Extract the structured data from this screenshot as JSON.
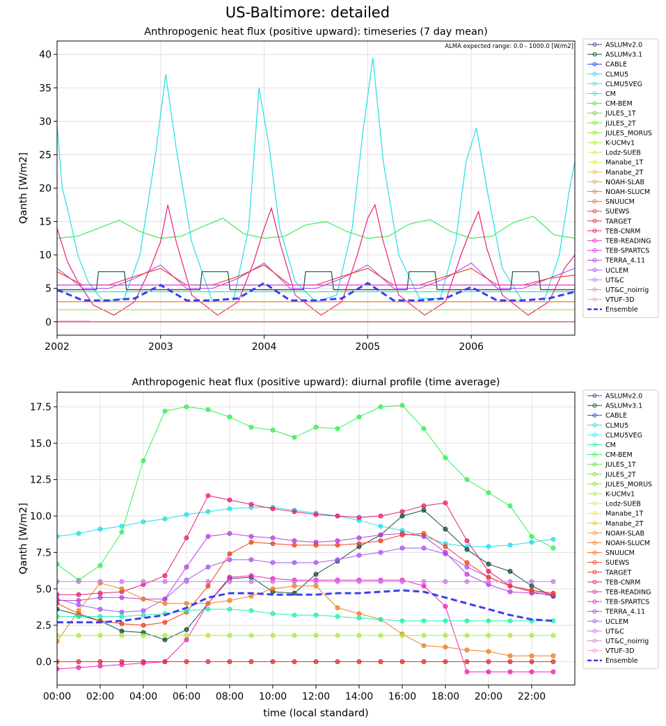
{
  "suptitle": "US-Baltimore: detailed",
  "colors": {
    "ASLUMv2.0": "#3b4a8f",
    "ASLUMv3.1": "#14503a",
    "CABLE": "#2a3cff",
    "CLMU5": "#22dde8",
    "CLMU5VEG": "#33e6f0",
    "CM": "#22eeb0",
    "CM-BEM": "#33ee55",
    "JULES_1T": "#66dd33",
    "JULES_2T": "#7ddd33",
    "JULES_MORUS": "#88e622",
    "K-UCMv1": "#aaee33",
    "Lodz-SUEB": "#c8f055",
    "Manabe_1T": "#ddee33",
    "Manabe_2T": "#f0c020",
    "NOAH-SLAB": "#f0a030",
    "NOAH-SLUCM": "#f07f20",
    "SNUUCM": "#ff6a1a",
    "SUEWS": "#f04020",
    "TARGET": "#e03030",
    "TEB-CNRM": "#e81e78",
    "TEB-READING": "#ee22bb",
    "TEB-SPARTCS": "#dd33dd",
    "TERRA_4.11": "#b540e0",
    "UCLEM": "#a855f7",
    "UT&C": "#cc77ee",
    "UT&C_noirrig": "#dd88dd",
    "VTUF-3D": "#ee99cc",
    "Ensemble": "#3c3cf0"
  },
  "chart_data": [
    {
      "type": "line",
      "title": "Anthropogenic heat flux (positive upward): timeseries (7 day mean)",
      "ylabel": "Qanth [W/m2]",
      "xlabel": "",
      "annotation": "ALMA expected range: 0.0 - 1000.0 [W/m2]",
      "xlim": [
        2002.0,
        2007.0
      ],
      "ylim": [
        -2,
        42
      ],
      "xticks": [
        "2002",
        "2003",
        "2004",
        "2005",
        "2006"
      ],
      "xtick_values": [
        2002,
        2003,
        2004,
        2005,
        2006
      ],
      "yticks": [
        0,
        5,
        10,
        15,
        20,
        25,
        30,
        35,
        40
      ],
      "grid": true,
      "legend": "outside-right",
      "series_names": [
        "ASLUMv2.0",
        "ASLUMv3.1",
        "CABLE",
        "CLMU5",
        "CLMU5VEG",
        "CM",
        "CM-BEM",
        "JULES_1T",
        "JULES_2T",
        "JULES_MORUS",
        "K-UCMv1",
        "Lodz-SUEB",
        "Manabe_1T",
        "Manabe_2T",
        "NOAH-SLAB",
        "NOAH-SLUCM",
        "SNUUCM",
        "SUEWS",
        "TARGET",
        "TEB-CNRM",
        "TEB-READING",
        "TEB-SPARTCS",
        "TERRA_4.11",
        "UCLEM",
        "UT&C",
        "UT&C_noirrig",
        "VTUF-3D",
        "Ensemble"
      ],
      "series": [
        {
          "name": "CM-BEM",
          "x": [
            2002.0,
            2002.2,
            2002.4,
            2002.6,
            2002.8,
            2003.0,
            2003.2,
            2003.4,
            2003.6,
            2003.8,
            2004.0,
            2004.2,
            2004.4,
            2004.6,
            2004.8,
            2005.0,
            2005.2,
            2005.4,
            2005.6,
            2005.8,
            2006.0,
            2006.2,
            2006.4,
            2006.6,
            2006.8,
            2007.0
          ],
          "y": [
            12.5,
            12.8,
            14.0,
            15.2,
            13.5,
            12.5,
            12.8,
            14.2,
            15.5,
            13.2,
            12.5,
            12.8,
            14.5,
            15.0,
            13.5,
            12.5,
            12.8,
            14.6,
            15.3,
            13.5,
            12.5,
            12.8,
            14.8,
            15.8,
            13.0,
            12.5
          ]
        },
        {
          "name": "CLMU5",
          "x": [
            2002.0,
            2002.05,
            2002.1,
            2002.2,
            2002.3,
            2002.45,
            2002.65,
            2002.8,
            2002.95,
            2003.05,
            2003.15,
            2003.3,
            2003.5,
            2003.7,
            2003.85,
            2003.95,
            2004.05,
            2004.15,
            2004.3,
            2004.5,
            2004.7,
            2004.85,
            2004.95,
            2005.05,
            2005.15,
            2005.3,
            2005.5,
            2005.7,
            2005.85,
            2005.95,
            2006.05,
            2006.15,
            2006.3,
            2006.5,
            2006.7,
            2006.85,
            2006.95,
            2007.0
          ],
          "y": [
            29.5,
            20.0,
            17.0,
            10.0,
            6.0,
            3.0,
            3.5,
            10.0,
            25.0,
            37.0,
            26.0,
            12.0,
            3.0,
            3.0,
            14.0,
            35.0,
            26.0,
            14.0,
            6.0,
            3.0,
            4.0,
            14.0,
            28.0,
            39.5,
            24.0,
            10.0,
            3.5,
            3.5,
            12.0,
            24.0,
            29.0,
            20.0,
            8.0,
            3.0,
            3.0,
            10.0,
            20.0,
            24.0
          ]
        },
        {
          "name": "TEB-CNRM",
          "x": [
            2002.0,
            2002.1,
            2002.2,
            2002.35,
            2002.55,
            2002.75,
            2002.9,
            2003.0,
            2003.07,
            2003.15,
            2003.3,
            2003.55,
            2003.75,
            2003.9,
            2004.0,
            2004.07,
            2004.15,
            2004.3,
            2004.55,
            2004.75,
            2004.9,
            2005.0,
            2005.07,
            2005.15,
            2005.3,
            2005.55,
            2005.75,
            2005.9,
            2006.0,
            2006.07,
            2006.15,
            2006.3,
            2006.55,
            2006.75,
            2006.9,
            2007.0
          ],
          "y": [
            14.0,
            9.0,
            6.0,
            2.5,
            1.0,
            3.0,
            8.0,
            12.0,
            17.5,
            12.0,
            4.0,
            1.0,
            3.0,
            9.0,
            14.0,
            17.0,
            12.0,
            4.0,
            1.0,
            3.0,
            10.0,
            15.5,
            17.5,
            12.0,
            4.0,
            1.0,
            3.0,
            10.0,
            14.0,
            16.5,
            11.0,
            4.0,
            1.0,
            3.0,
            8.0,
            10.0
          ]
        },
        {
          "name": "UCLEM",
          "x": [
            2002.0,
            2002.25,
            2002.5,
            2002.75,
            2003.0,
            2003.25,
            2003.5,
            2003.75,
            2004.0,
            2004.25,
            2004.5,
            2004.75,
            2005.0,
            2005.25,
            2005.5,
            2005.75,
            2006.0,
            2006.25,
            2006.5,
            2006.75,
            2007.0
          ],
          "y": [
            8.0,
            5.0,
            5.0,
            6.5,
            8.5,
            5.0,
            5.0,
            6.5,
            8.8,
            5.0,
            5.0,
            6.5,
            8.5,
            5.0,
            5.0,
            6.5,
            8.8,
            5.0,
            5.0,
            6.5,
            8.0
          ]
        },
        {
          "name": "SUEWS",
          "x": [
            2002.0,
            2002.25,
            2002.5,
            2002.75,
            2003.0,
            2003.25,
            2003.5,
            2003.75,
            2004.0,
            2004.25,
            2004.5,
            2004.75,
            2005.0,
            2005.25,
            2005.5,
            2005.75,
            2006.0,
            2006.25,
            2006.5,
            2006.75,
            2007.0
          ],
          "y": [
            7.5,
            5.5,
            5.5,
            6.8,
            8.0,
            5.5,
            5.5,
            6.8,
            8.5,
            5.5,
            5.5,
            6.8,
            8.0,
            5.5,
            5.5,
            6.8,
            8.0,
            5.5,
            5.5,
            6.5,
            7.0
          ]
        },
        {
          "name": "ASLUMv3.1",
          "x": [
            2002.0,
            2002.38,
            2002.4,
            2002.65,
            2002.67,
            2003.38,
            2003.4,
            2003.65,
            2003.67,
            2004.38,
            2004.4,
            2004.65,
            2004.67,
            2005.38,
            2005.4,
            2005.65,
            2005.67,
            2006.38,
            2006.4,
            2006.65,
            2006.67,
            2007.0
          ],
          "y": [
            4.8,
            4.8,
            7.5,
            7.5,
            4.8,
            4.8,
            7.5,
            7.5,
            4.8,
            4.8,
            7.5,
            7.5,
            4.8,
            4.8,
            7.5,
            7.5,
            4.8,
            4.8,
            7.5,
            7.5,
            4.8,
            4.8
          ]
        },
        {
          "name": "TEB-SPARTCS",
          "x": [
            2002.0,
            2007.0
          ],
          "y": [
            5.5,
            5.5
          ]
        },
        {
          "name": "CM",
          "x": [
            2002.0,
            2007.0
          ],
          "y": [
            4.5,
            4.5
          ]
        },
        {
          "name": "NOAH-SLUCM",
          "x": [
            2002.0,
            2007.0
          ],
          "y": [
            3.0,
            3.0
          ]
        },
        {
          "name": "K-UCMv1",
          "x": [
            2002.0,
            2007.0
          ],
          "y": [
            1.8,
            1.8
          ]
        },
        {
          "name": "TARGET",
          "x": [
            2002.0,
            2007.0
          ],
          "y": [
            0.0,
            0.0
          ]
        },
        {
          "name": "VTUF-3D",
          "x": [
            2002.0,
            2002.32
          ],
          "y": [
            0.1,
            0.1
          ]
        },
        {
          "name": "Ensemble",
          "x": [
            2002.0,
            2002.25,
            2002.5,
            2002.75,
            2003.0,
            2003.25,
            2003.5,
            2003.75,
            2004.0,
            2004.25,
            2004.5,
            2004.75,
            2005.0,
            2005.25,
            2005.5,
            2005.75,
            2006.0,
            2006.25,
            2006.5,
            2006.75,
            2007.0
          ],
          "y": [
            4.8,
            3.2,
            3.2,
            3.5,
            5.5,
            3.2,
            3.2,
            3.5,
            5.8,
            3.2,
            3.2,
            3.5,
            5.8,
            3.2,
            3.2,
            3.5,
            5.2,
            3.2,
            3.2,
            3.5,
            4.5
          ]
        }
      ]
    },
    {
      "type": "line",
      "title": "Anthropogenic heat flux (positive upward): diurnal profile (time average)",
      "ylabel": "Qanth [W/m2]",
      "xlabel": "time (local standard)",
      "xlim": [
        0,
        24
      ],
      "ylim": [
        -1.6,
        18.5
      ],
      "xticks": [
        "00:00",
        "02:00",
        "04:00",
        "06:00",
        "08:00",
        "10:00",
        "12:00",
        "14:00",
        "16:00",
        "18:00",
        "20:00",
        "22:00"
      ],
      "xtick_values": [
        0,
        2,
        4,
        6,
        8,
        10,
        12,
        14,
        16,
        18,
        20,
        22
      ],
      "yticks": [
        "0.0",
        "2.5",
        "5.0",
        "7.5",
        "10.0",
        "12.5",
        "15.0",
        "17.5"
      ],
      "ytick_values": [
        0,
        2.5,
        5,
        7.5,
        10,
        12.5,
        15,
        17.5
      ],
      "grid": true,
      "legend": "outside-right",
      "series_names": [
        "ASLUMv2.0",
        "ASLUMv3.1",
        "CABLE",
        "CLMU5",
        "CLMU5VEG",
        "CM",
        "CM-BEM",
        "JULES_1T",
        "JULES_2T",
        "JULES_MORUS",
        "K-UCMv1",
        "Lodz-SUEB",
        "Manabe_1T",
        "Manabe_2T",
        "NOAH-SLAB",
        "NOAH-SLUCM",
        "SNUUCM",
        "SUEWS",
        "TARGET",
        "TEB-CNRM",
        "TEB-READING",
        "TEB-SPARTCS",
        "TERRA_4.11",
        "UCLEM",
        "UT&C",
        "UT&C_noirrig",
        "VTUF-3D",
        "Ensemble"
      ],
      "x": [
        0,
        1,
        2,
        3,
        4,
        5,
        6,
        7,
        8,
        9,
        10,
        11,
        12,
        13,
        14,
        15,
        16,
        17,
        18,
        19,
        20,
        21,
        22,
        23
      ],
      "series": [
        {
          "name": "CM-BEM",
          "y": [
            6.7,
            5.6,
            6.6,
            8.9,
            13.8,
            17.2,
            17.5,
            17.3,
            16.8,
            16.1,
            15.9,
            15.4,
            16.1,
            16.0,
            16.8,
            17.5,
            17.6,
            16.0,
            14.0,
            12.5,
            11.6,
            10.7,
            8.6,
            7.8
          ]
        },
        {
          "name": "CLMU5",
          "y": [
            8.6,
            8.8,
            9.1,
            9.3,
            9.6,
            9.8,
            10.1,
            10.3,
            10.5,
            10.6,
            10.6,
            10.4,
            10.2,
            10.0,
            9.7,
            9.3,
            9.0,
            8.6,
            8.1,
            7.9,
            7.9,
            8.0,
            8.2,
            8.4
          ]
        },
        {
          "name": "TEB-CNRM",
          "y": [
            4.6,
            4.6,
            4.7,
            4.8,
            5.3,
            5.9,
            8.5,
            11.4,
            11.1,
            10.8,
            10.5,
            10.3,
            10.1,
            10.0,
            9.9,
            10.0,
            10.3,
            10.7,
            10.9,
            8.3,
            6.2,
            5.2,
            4.8,
            4.5
          ]
        },
        {
          "name": "ASLUMv3.1",
          "y": [
            3.6,
            3.2,
            2.8,
            2.1,
            2.0,
            1.5,
            2.2,
            4.0,
            5.7,
            5.8,
            4.8,
            4.7,
            6.0,
            6.9,
            7.9,
            8.7,
            10.0,
            10.4,
            9.1,
            7.7,
            6.7,
            6.2,
            5.2,
            4.5
          ]
        },
        {
          "name": "UCLEM",
          "y": [
            4.3,
            3.9,
            3.6,
            3.4,
            3.5,
            4.3,
            5.6,
            6.5,
            7.0,
            7.0,
            6.8,
            6.8,
            6.8,
            7.0,
            7.3,
            7.5,
            7.8,
            7.8,
            7.4,
            6.5,
            5.8,
            5.2,
            4.9,
            4.6
          ]
        },
        {
          "name": "TERRA_4.11",
          "y": [
            4.2,
            4.2,
            4.4,
            4.4,
            4.3,
            4.3,
            6.5,
            8.6,
            8.8,
            8.6,
            8.5,
            8.3,
            8.2,
            8.3,
            8.5,
            8.7,
            8.8,
            8.6,
            7.5,
            6.0,
            5.3,
            4.8,
            4.7,
            4.6
          ]
        },
        {
          "name": "SUEWS",
          "y": [
            4.0,
            3.3,
            2.8,
            2.6,
            2.5,
            2.7,
            3.4,
            5.2,
            7.4,
            8.2,
            8.1,
            8.0,
            8.0,
            8.0,
            8.1,
            8.3,
            8.7,
            8.8,
            7.9,
            6.8,
            5.8,
            5.2,
            4.9,
            4.7
          ]
        },
        {
          "name": "TEB-READING",
          "y": [
            -0.5,
            -0.4,
            -0.3,
            -0.2,
            -0.1,
            0.0,
            1.5,
            4.0,
            5.8,
            5.9,
            5.7,
            5.6,
            5.6,
            5.6,
            5.6,
            5.6,
            5.6,
            5.2,
            3.8,
            -0.7,
            -0.7,
            -0.7,
            -0.7,
            -0.7
          ]
        },
        {
          "name": "NOAH-SLUCM",
          "y": [
            1.4,
            3.5,
            5.4,
            5.0,
            4.3,
            4.0,
            4.0,
            4.0,
            4.2,
            4.5,
            5.0,
            5.2,
            5.2,
            3.7,
            3.3,
            2.9,
            1.9,
            1.1,
            1.0,
            0.8,
            0.7,
            0.4,
            0.4,
            0.4
          ]
        },
        {
          "name": "UT&C",
          "y": [
            5.5,
            5.5,
            5.5,
            5.5,
            5.5,
            5.5,
            5.5,
            5.5,
            5.5,
            5.5,
            5.5,
            5.5,
            5.5,
            5.5,
            5.5,
            5.5,
            5.5,
            5.5,
            5.5,
            5.5,
            5.5,
            5.5,
            5.5,
            5.5
          ]
        },
        {
          "name": "CM",
          "y": [
            3.1,
            3.1,
            3.1,
            3.1,
            3.2,
            3.3,
            3.5,
            3.6,
            3.6,
            3.5,
            3.3,
            3.2,
            3.2,
            3.1,
            3.0,
            2.9,
            2.8,
            2.8,
            2.8,
            2.8,
            2.8,
            2.8,
            2.8,
            2.8
          ]
        },
        {
          "name": "K-UCMv1",
          "y": [
            1.8,
            1.8,
            1.8,
            1.8,
            1.8,
            1.8,
            1.8,
            1.8,
            1.8,
            1.8,
            1.8,
            1.8,
            1.8,
            1.8,
            1.8,
            1.8,
            1.8,
            1.8,
            1.8,
            1.8,
            1.8,
            1.8,
            1.8,
            1.8
          ]
        },
        {
          "name": "TARGET",
          "y": [
            0.0,
            0.0,
            0.0,
            0.0,
            0.0,
            0.0,
            0.0,
            0.0,
            0.0,
            0.0,
            0.0,
            0.0,
            0.0,
            0.0,
            0.0,
            0.0,
            0.0,
            0.0,
            0.0,
            0.0,
            0.0,
            0.0,
            0.0,
            0.0
          ]
        },
        {
          "name": "Ensemble",
          "y": [
            2.7,
            2.7,
            2.7,
            2.8,
            3.0,
            3.2,
            3.7,
            4.4,
            4.7,
            4.7,
            4.6,
            4.6,
            4.6,
            4.7,
            4.7,
            4.8,
            4.9,
            4.8,
            4.4,
            4.0,
            3.6,
            3.2,
            2.9,
            2.8
          ]
        }
      ]
    }
  ]
}
